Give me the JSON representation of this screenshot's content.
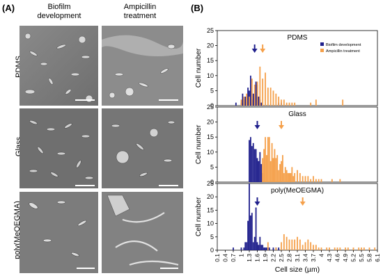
{
  "figure": {
    "panel_a_label": "(A)",
    "panel_b_label": "(B)",
    "col_headers": [
      "Biofilm\ndevelopment",
      "Ampicillin\ntreatment"
    ],
    "row_labels": [
      "PDMS",
      "Glass",
      "poly(MeOEGMA)"
    ]
  },
  "chart_data": {
    "type": "bar",
    "ylabel": "Cell number",
    "xlabel": "Cell size (µm)",
    "ylim": [
      0,
      25
    ],
    "yticks": [
      0,
      5,
      10,
      15,
      20,
      25
    ],
    "categories": [
      "0.1",
      "0.4",
      "0.7",
      "1",
      "1.3",
      "1.6",
      "1.9",
      "2.2",
      "2.5",
      "2.8",
      "3.1",
      "3.4",
      "3.7",
      "4",
      "4.3",
      "4.6",
      "4.9",
      "5.2",
      "5.5",
      "5.8",
      "6.1"
    ],
    "legend": {
      "position": "top-right",
      "entries": [
        {
          "name": "Biofilm development",
          "color": "#1f1f8c"
        },
        {
          "name": "Ampicillin treatment",
          "color": "#f5a04a"
        }
      ]
    },
    "colors": {
      "biofilm": "#1f1f8c",
      "ampicillin": "#f5a04a"
    },
    "subplots": [
      {
        "title": "PDMS",
        "biofilm_marker": 1.5,
        "ampicillin_marker": 1.8,
        "series": [
          {
            "name": "Biofilm development",
            "x": [
              0.8,
              1.0,
              1.05,
              1.1,
              1.15,
              1.2,
              1.25,
              1.3,
              1.35,
              1.4,
              1.45,
              1.5,
              1.55,
              1.6,
              1.65,
              1.7,
              1.75,
              2.4,
              2.5
            ],
            "values": [
              1,
              1,
              4,
              2,
              3,
              3,
              6,
              5,
              10,
              2,
              4,
              4,
              8,
              7,
              3,
              2,
              1,
              1,
              1
            ]
          },
          {
            "name": "Ampicillin treatment",
            "x": [
              1.0,
              1.1,
              1.2,
              1.3,
              1.4,
              1.5,
              1.6,
              1.7,
              1.8,
              1.9,
              2.0,
              2.1,
              2.2,
              2.3,
              2.4,
              2.5,
              2.6,
              2.7,
              2.8,
              2.9,
              3.0,
              3.6,
              3.8,
              4.8
            ],
            "values": [
              2,
              3,
              4,
              3,
              9,
              7,
              8,
              13,
              9,
              11,
              6,
              6,
              5,
              4,
              3,
              2,
              2,
              1,
              1,
              1,
              1,
              1,
              2,
              2
            ]
          }
        ]
      },
      {
        "title": "Glass",
        "biofilm_marker": 1.6,
        "ampicillin_marker": 2.5,
        "series": [
          {
            "name": "Biofilm development",
            "x": [
              1.3,
              1.35,
              1.4,
              1.45,
              1.5,
              1.55,
              1.6,
              1.65,
              1.7,
              1.75,
              1.8
            ],
            "values": [
              14,
              15,
              12,
              13,
              11,
              11,
              8,
              7,
              10,
              6,
              3
            ]
          },
          {
            "name": "Ampicillin treatment",
            "x": [
              1.8,
              1.85,
              1.9,
              1.95,
              2.0,
              2.05,
              2.1,
              2.15,
              2.2,
              2.25,
              2.3,
              2.35,
              2.4,
              2.45,
              2.5,
              2.55,
              2.6,
              2.65,
              2.7,
              2.75,
              2.8,
              2.85,
              2.9,
              2.95,
              3.0,
              3.1,
              3.2,
              3.3,
              3.4,
              3.5,
              3.6,
              3.7,
              3.8,
              3.9,
              4.0,
              4.4,
              4.7
            ],
            "values": [
              8,
              11,
              15,
              9,
              15,
              15,
              7,
              13,
              8,
              11,
              8,
              9,
              4,
              6,
              7,
              9,
              3,
              5,
              4,
              3,
              3,
              3,
              5,
              2,
              3,
              4,
              3,
              2,
              2,
              2,
              1,
              2,
              1,
              1,
              1,
              1,
              1
            ]
          }
        ]
      },
      {
        "title": "poly(MeOEGMA)",
        "biofilm_marker": 1.6,
        "ampicillin_marker": 3.3,
        "series": [
          {
            "name": "Biofilm development",
            "x": [
              0.7,
              1.0,
              1.1,
              1.15,
              1.2,
              1.25,
              1.3,
              1.35,
              1.4,
              1.45,
              1.5,
              1.55,
              1.6,
              1.65,
              1.7,
              1.75,
              1.8,
              1.85,
              1.9,
              1.95,
              2.0,
              2.05,
              2.2,
              2.3,
              2.4
            ],
            "values": [
              1,
              1,
              1,
              3,
              3,
              11,
              27,
              13,
              14,
              3,
              5,
              16,
              3,
              2,
              5,
              2,
              2,
              1,
              1,
              1,
              1,
              1,
              1,
              1,
              1
            ]
          },
          {
            "name": "Ampicillin treatment",
            "x": [
              2.0,
              2.3,
              2.5,
              2.6,
              2.7,
              2.8,
              2.9,
              3.0,
              3.1,
              3.2,
              3.3,
              3.4,
              3.5,
              3.6,
              3.7,
              3.8,
              3.9,
              4.0,
              4.2,
              4.3,
              4.5,
              4.6,
              4.7,
              4.9,
              5.0,
              5.2,
              5.4,
              5.5,
              5.6,
              5.8,
              6.0
            ],
            "values": [
              3,
              1,
              3,
              6,
              5,
              4,
              4,
              4,
              5,
              4,
              2,
              3,
              4,
              3,
              2,
              2,
              1,
              1,
              1,
              1,
              1,
              1,
              1,
              1,
              1,
              1,
              1,
              1,
              1,
              1,
              1
            ]
          }
        ]
      }
    ]
  }
}
